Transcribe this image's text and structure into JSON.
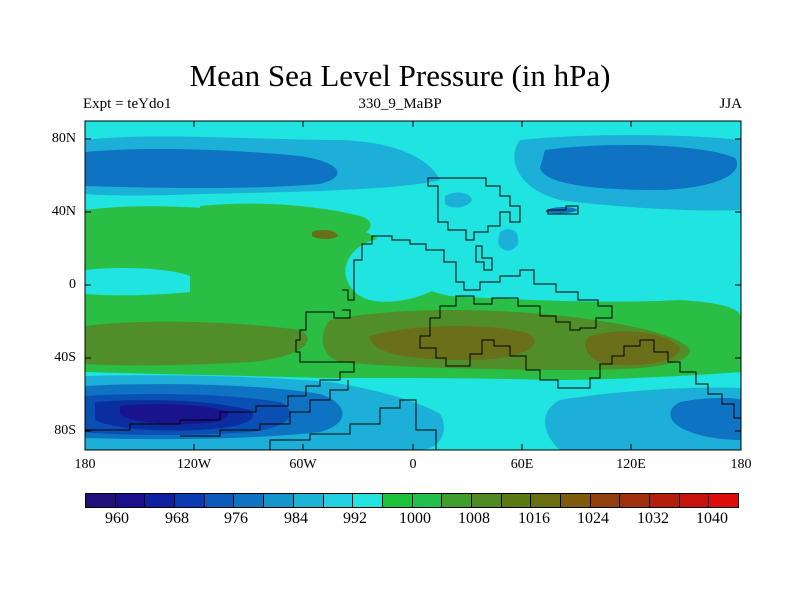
{
  "title": "Mean Sea Level Pressure (in hPa)",
  "subtitle_left": "Expt = teYdo1",
  "subtitle_center": "330_9_MaBP",
  "subtitle_right": "JJA",
  "y_axis_labels": [
    "80N",
    "40N",
    "0",
    "40S",
    "80S"
  ],
  "x_axis_labels": [
    "180",
    "120W",
    "60W",
    "0",
    "60E",
    "120E",
    "180"
  ],
  "colorbar": {
    "labels": [
      "960",
      "968",
      "976",
      "984",
      "992",
      "1000",
      "1008",
      "1016",
      "1024",
      "1032",
      "1040"
    ],
    "colors": [
      "#22117a",
      "#1a0f8c",
      "#0e21a0",
      "#0a3bb3",
      "#0a5bbb",
      "#0d73c2",
      "#1394cc",
      "#1cb3d6",
      "#24d1e0",
      "#23e5e0",
      "#1bc43a",
      "#22bf4a",
      "#3f9e2c",
      "#4f8a22",
      "#5b7a14",
      "#6a6e12",
      "#7f5b0e",
      "#90400c",
      "#a0300b",
      "#b31f0c",
      "#c8120d",
      "#df0c0c"
    ]
  },
  "palette": {
    "p992": "#1cb0d8",
    "p1000": "#1fe4df",
    "p1008": "#2abe45",
    "p1016": "#4f8e28",
    "p1024": "#6a6f1a",
    "p984": "#0d73c2",
    "p976": "#0a4fb3",
    "p968": "#0a2ea0",
    "p960": "#1a138e"
  }
}
